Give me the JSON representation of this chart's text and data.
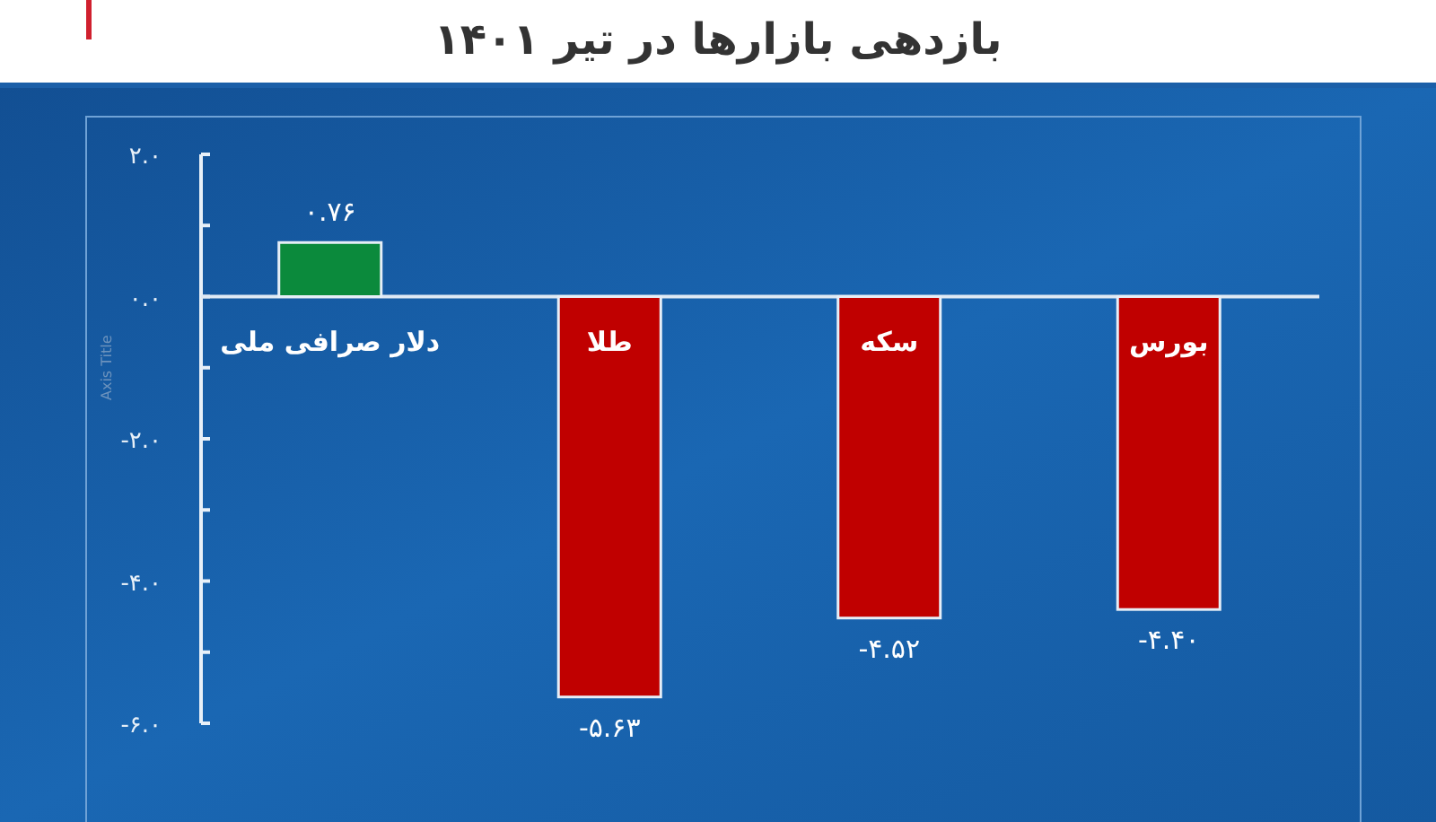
{
  "chart_data": {
    "type": "bar",
    "title": "بازدهی بازارها در تیر ۱۴۰۱",
    "ylabel": "Axis Title",
    "categories": [
      "دلار صرافی ملی",
      "طلا",
      "سکه",
      "بورس"
    ],
    "values": [
      0.76,
      -5.63,
      -4.52,
      -4.4
    ],
    "colors": [
      "#0b8a3c",
      "#c00000",
      "#c00000",
      "#c00000"
    ],
    "value_labels": [
      "۰.۷۶",
      "-۵.۶۳",
      "-۴.۵۲",
      "-۴.۴۰"
    ],
    "ylim": [
      -6,
      2
    ],
    "yticks": [
      {
        "value": 2,
        "label": "۲.۰"
      },
      {
        "value": 1,
        "label": null
      },
      {
        "value": 0,
        "label": "۰.۰"
      },
      {
        "value": -1,
        "label": null
      },
      {
        "value": -2,
        "label": "-۲.۰"
      },
      {
        "value": -3,
        "label": null
      },
      {
        "value": -4,
        "label": "-۴.۰"
      },
      {
        "value": -5,
        "label": null
      },
      {
        "value": -6,
        "label": "-۶.۰"
      }
    ]
  }
}
